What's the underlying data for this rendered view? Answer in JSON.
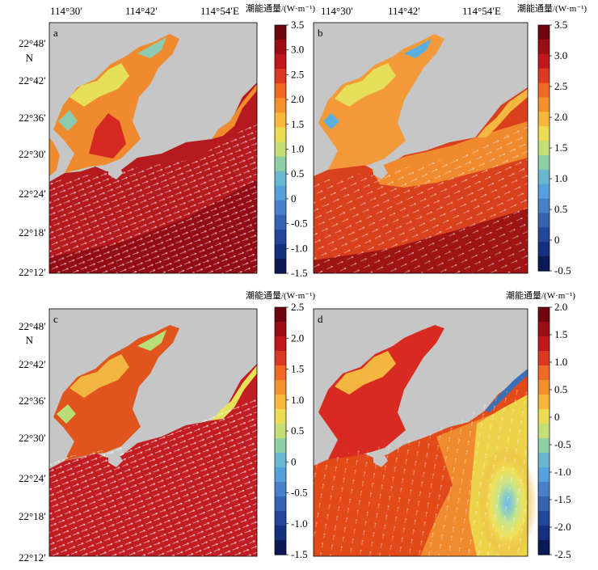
{
  "top_axis": {
    "ticks_left": [
      "114°30′",
      "114°42′",
      "114°54′E"
    ],
    "ticks_right": [
      "114°30′",
      "114°42′",
      "114°54′E"
    ]
  },
  "left_axis": {
    "ticks_top": [
      "22°48′",
      "22°42′",
      "22°36′",
      "22°30′",
      "22°24′",
      "22°18′",
      "22°12′"
    ],
    "ticks_bottom": [
      "22°48′",
      "22°42′",
      "22°36′",
      "22°30′",
      "22°24′",
      "22°18′",
      "22°12′"
    ],
    "north_label": "N"
  },
  "colorbar_title": "潮能通量/(W·m⁻¹)",
  "panels": [
    {
      "letter": "a",
      "cbar_ticks": [
        "3.5",
        "3.0",
        "2.5",
        "2.0",
        "1.5",
        "1.0",
        "0.5",
        "0",
        "-0.5",
        "-1.0",
        "-1.5"
      ]
    },
    {
      "letter": "b",
      "cbar_ticks": [
        "3.5",
        "3.0",
        "2.5",
        "2.0",
        "1.5",
        "1.0",
        "0.5",
        "0",
        "-0.5"
      ]
    },
    {
      "letter": "c",
      "cbar_ticks": [
        "2.5",
        "2.0",
        "1.5",
        "1.0",
        "0.5",
        "0",
        "-0.5",
        "-1.0",
        "-1.5"
      ]
    },
    {
      "letter": "d",
      "cbar_ticks": [
        "2.0",
        "1.5",
        "1.0",
        "0.5",
        "0",
        "-0.5",
        "-1.0",
        "-1.5",
        "-2.0",
        "-2.5"
      ]
    }
  ],
  "colors": {
    "land": "#c6c6c6",
    "deep_red": "#8e0a12",
    "red": "#cf2226",
    "orange": "#f47d2a",
    "yellow": "#e8e25a",
    "green": "#7fc8a6",
    "light_blue": "#5aaee0",
    "blue": "#2c5aa8",
    "navy": "#0b1a55",
    "arrow": "#ffffff"
  }
}
